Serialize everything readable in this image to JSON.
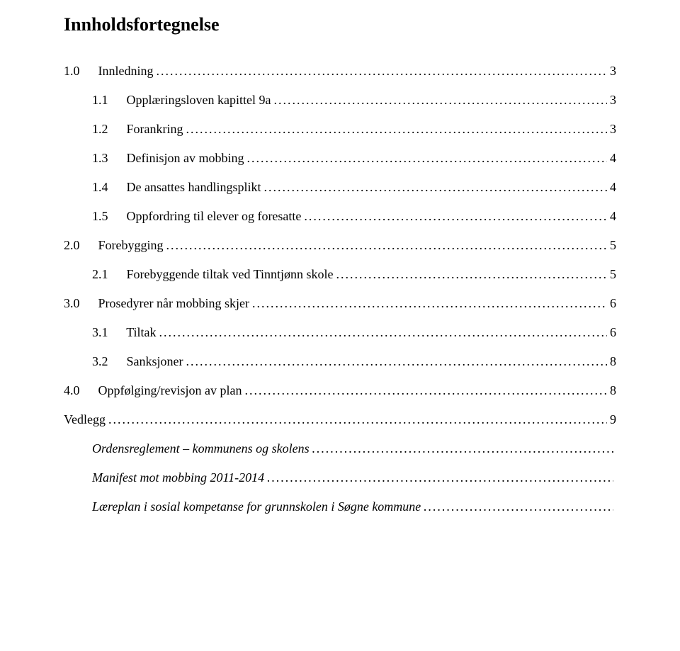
{
  "title": "Innholdsfortegnelse",
  "entries": [
    {
      "level": 1,
      "num": "1.0",
      "text": "Innledning",
      "page": "3",
      "italic": false,
      "dots": true,
      "extraTop": false
    },
    {
      "level": 2,
      "num": "1.1",
      "text": "Opplæringsloven kapittel 9a",
      "page": "3",
      "italic": false,
      "dots": true,
      "extraTop": false
    },
    {
      "level": 2,
      "num": "1.2",
      "text": "Forankring",
      "page": "3",
      "italic": false,
      "dots": true,
      "extraTop": false
    },
    {
      "level": 2,
      "num": "1.3",
      "text": "Definisjon av mobbing",
      "page": "4",
      "italic": false,
      "dots": true,
      "extraTop": false
    },
    {
      "level": 2,
      "num": "1.4",
      "text": "De ansattes handlingsplikt",
      "page": "4",
      "italic": false,
      "dots": true,
      "extraTop": false
    },
    {
      "level": 2,
      "num": "1.5",
      "text": "Oppfordring til elever og foresatte",
      "page": "4",
      "italic": false,
      "dots": true,
      "extraTop": false
    },
    {
      "level": 1,
      "num": "2.0",
      "text": "Forebygging",
      "page": "5",
      "italic": false,
      "dots": true,
      "extraTop": true
    },
    {
      "level": 2,
      "num": "2.1",
      "text": "Forebyggende tiltak ved Tinntjønn skole",
      "page": "5",
      "italic": false,
      "dots": true,
      "extraTop": false
    },
    {
      "level": 1,
      "num": "3.0",
      "text": "Prosedyrer når mobbing skjer",
      "page": "6",
      "italic": false,
      "dots": true,
      "extraTop": true
    },
    {
      "level": 2,
      "num": "3.1",
      "text": "Tiltak",
      "page": "6",
      "italic": false,
      "dots": true,
      "extraTop": false
    },
    {
      "level": 2,
      "num": "3.2",
      "text": "Sanksjoner",
      "page": "8",
      "italic": false,
      "dots": true,
      "extraTop": false
    },
    {
      "level": 1,
      "num": "4.0",
      "text": "Oppfølging/revisjon av plan",
      "page": "8",
      "italic": false,
      "dots": true,
      "extraTop": true
    },
    {
      "level": 1,
      "num": "",
      "text": "Vedlegg",
      "page": "9",
      "italic": false,
      "dots": true,
      "extraTop": true
    },
    {
      "level": 2,
      "num": "",
      "text": "Ordensreglement – kommunens og skolens",
      "page": "",
      "italic": true,
      "dots": true,
      "extraTop": false
    },
    {
      "level": 2,
      "num": "",
      "text": "Manifest mot mobbing 2011-2014",
      "page": "",
      "italic": true,
      "dots": true,
      "extraTop": false
    },
    {
      "level": 2,
      "num": "",
      "text": "Læreplan i sosial kompetanse for grunnskolen i Søgne kommune",
      "page": "",
      "italic": true,
      "dots": true,
      "extraTop": false
    }
  ]
}
